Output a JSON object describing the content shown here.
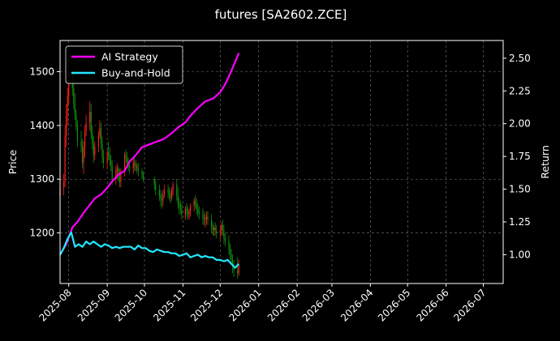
{
  "chart_data": {
    "type": "line",
    "title": "futures [SA2602.ZCE]",
    "xlabel": "",
    "ylabel": "Price",
    "y2label": "Return",
    "x_range": [
      "2025-07-25",
      "2026-07-17"
    ],
    "x_ticks": [
      "2025-08-01",
      "2025-09-01",
      "2025-10-01",
      "2025-11-01",
      "2025-12-01",
      "2026-01-01",
      "2026-02-01",
      "2026-03-01",
      "2026-04-01",
      "2026-05-01",
      "2026-06-01",
      "2026-07-01"
    ],
    "x_tick_labels": [
      "2025-08",
      "2025-09",
      "2025-10",
      "2025-11",
      "2025-12",
      "2026-01",
      "2026-02",
      "2026-03",
      "2026-04",
      "2026-05",
      "2026-06",
      "2026-07"
    ],
    "ylim_left": [
      1106,
      1558
    ],
    "y_ticks_left": [
      1200,
      1300,
      1400,
      1500
    ],
    "ylim_right": [
      0.78,
      2.635
    ],
    "y_ticks_right": [
      1.0,
      1.25,
      1.5,
      1.75,
      2.0,
      2.25,
      2.5
    ],
    "y_tick_labels_right": [
      "1.00",
      "1.25",
      "1.50",
      "1.75",
      "2.00",
      "2.25",
      "2.50"
    ],
    "grid": true,
    "legend_position": "top-left",
    "candles": {
      "up_color": "#ff2020",
      "down_color": "#109010",
      "dates": [
        "2025-07-25",
        "2025-07-28",
        "2025-07-29",
        "2025-07-30",
        "2025-07-31",
        "2025-08-01",
        "2025-08-04",
        "2025-08-05",
        "2025-08-06",
        "2025-08-07",
        "2025-08-08",
        "2025-08-11",
        "2025-08-12",
        "2025-08-13",
        "2025-08-14",
        "2025-08-15",
        "2025-08-18",
        "2025-08-19",
        "2025-08-20",
        "2025-08-21",
        "2025-08-22",
        "2025-08-25",
        "2025-08-26",
        "2025-08-27",
        "2025-08-28",
        "2025-08-29",
        "2025-09-01",
        "2025-09-02",
        "2025-09-03",
        "2025-09-04",
        "2025-09-05",
        "2025-09-08",
        "2025-09-09",
        "2025-09-10",
        "2025-09-11",
        "2025-09-12",
        "2025-09-15",
        "2025-09-16",
        "2025-09-17",
        "2025-09-18",
        "2025-09-19",
        "2025-09-22",
        "2025-09-23",
        "2025-09-24",
        "2025-09-25",
        "2025-09-26",
        "2025-09-29",
        "2025-09-30",
        "2025-10-09",
        "2025-10-10",
        "2025-10-13",
        "2025-10-14",
        "2025-10-15",
        "2025-10-16",
        "2025-10-17",
        "2025-10-20",
        "2025-10-21",
        "2025-10-22",
        "2025-10-23",
        "2025-10-24",
        "2025-10-27",
        "2025-10-28",
        "2025-10-29",
        "2025-10-30",
        "2025-10-31",
        "2025-11-03",
        "2025-11-04",
        "2025-11-05",
        "2025-11-06",
        "2025-11-07",
        "2025-11-10",
        "2025-11-11",
        "2025-11-12",
        "2025-11-13",
        "2025-11-14",
        "2025-11-17",
        "2025-11-18",
        "2025-11-19",
        "2025-11-20",
        "2025-11-21",
        "2025-11-24",
        "2025-11-25",
        "2025-11-26",
        "2025-11-27",
        "2025-11-28",
        "2025-12-01",
        "2025-12-02",
        "2025-12-03",
        "2025-12-04",
        "2025-12-05",
        "2025-12-08",
        "2025-12-09",
        "2025-12-10",
        "2025-12-11",
        "2025-12-12",
        "2025-12-15",
        "2025-12-16"
      ],
      "open": [
        1270,
        1285,
        1295,
        1380,
        1420,
        1455,
        1480,
        1470,
        1440,
        1420,
        1400,
        1370,
        1360,
        1330,
        1360,
        1390,
        1405,
        1425,
        1385,
        1365,
        1345,
        1360,
        1380,
        1395,
        1365,
        1340,
        1330,
        1350,
        1345,
        1335,
        1325,
        1300,
        1315,
        1320,
        1305,
        1295,
        1315,
        1345,
        1340,
        1330,
        1325,
        1320,
        1330,
        1325,
        1325,
        1320,
        1315,
        1310,
        1300,
        1290,
        1280,
        1270,
        1265,
        1260,
        1270,
        1280,
        1275,
        1270,
        1265,
        1280,
        1290,
        1270,
        1255,
        1250,
        1245,
        1235,
        1245,
        1240,
        1235,
        1240,
        1250,
        1260,
        1255,
        1245,
        1240,
        1235,
        1230,
        1225,
        1225,
        1230,
        1225,
        1210,
        1205,
        1210,
        1205,
        1200,
        1205,
        1215,
        1205,
        1190,
        1185,
        1170,
        1160,
        1150,
        1140,
        1130,
        1125
      ],
      "high": [
        1300,
        1310,
        1400,
        1440,
        1470,
        1500,
        1500,
        1490,
        1460,
        1430,
        1410,
        1390,
        1375,
        1370,
        1400,
        1420,
        1445,
        1440,
        1400,
        1380,
        1370,
        1390,
        1410,
        1405,
        1380,
        1355,
        1355,
        1370,
        1360,
        1345,
        1335,
        1325,
        1330,
        1325,
        1320,
        1320,
        1350,
        1355,
        1350,
        1340,
        1335,
        1340,
        1340,
        1335,
        1330,
        1330,
        1320,
        1315,
        1305,
        1300,
        1290,
        1280,
        1275,
        1280,
        1290,
        1290,
        1285,
        1280,
        1285,
        1295,
        1300,
        1285,
        1265,
        1260,
        1255,
        1250,
        1255,
        1250,
        1245,
        1255,
        1265,
        1270,
        1265,
        1255,
        1250,
        1245,
        1240,
        1235,
        1240,
        1240,
        1235,
        1220,
        1215,
        1220,
        1215,
        1210,
        1220,
        1225,
        1215,
        1200,
        1195,
        1180,
        1170,
        1160,
        1150,
        1155,
        1150
      ],
      "low": [
        1255,
        1270,
        1285,
        1360,
        1400,
        1440,
        1455,
        1430,
        1410,
        1390,
        1360,
        1350,
        1320,
        1310,
        1340,
        1380,
        1390,
        1375,
        1355,
        1330,
        1335,
        1350,
        1375,
        1355,
        1330,
        1320,
        1320,
        1335,
        1325,
        1315,
        1290,
        1290,
        1300,
        1295,
        1285,
        1285,
        1305,
        1330,
        1320,
        1315,
        1310,
        1310,
        1315,
        1315,
        1310,
        1305,
        1300,
        1295,
        1280,
        1270,
        1260,
        1250,
        1245,
        1250,
        1265,
        1265,
        1260,
        1255,
        1260,
        1270,
        1260,
        1245,
        1235,
        1235,
        1225,
        1225,
        1230,
        1225,
        1225,
        1230,
        1240,
        1245,
        1235,
        1230,
        1225,
        1215,
        1215,
        1210,
        1215,
        1215,
        1200,
        1195,
        1195,
        1195,
        1190,
        1185,
        1195,
        1195,
        1180,
        1175,
        1160,
        1150,
        1140,
        1125,
        1118,
        1115,
        1120
      ],
      "close": [
        1285,
        1295,
        1380,
        1420,
        1455,
        1480,
        1470,
        1440,
        1420,
        1400,
        1370,
        1360,
        1330,
        1360,
        1390,
        1405,
        1425,
        1385,
        1365,
        1345,
        1360,
        1380,
        1395,
        1365,
        1340,
        1330,
        1350,
        1345,
        1335,
        1325,
        1300,
        1315,
        1320,
        1305,
        1295,
        1315,
        1345,
        1340,
        1330,
        1325,
        1320,
        1330,
        1325,
        1325,
        1320,
        1315,
        1310,
        1300,
        1290,
        1280,
        1270,
        1265,
        1260,
        1270,
        1280,
        1275,
        1270,
        1265,
        1280,
        1290,
        1270,
        1255,
        1250,
        1245,
        1235,
        1245,
        1240,
        1235,
        1240,
        1250,
        1260,
        1255,
        1245,
        1240,
        1235,
        1230,
        1225,
        1225,
        1230,
        1225,
        1210,
        1205,
        1210,
        1205,
        1200,
        1205,
        1215,
        1205,
        1190,
        1185,
        1170,
        1160,
        1150,
        1140,
        1130,
        1125,
        1140
      ]
    },
    "series": [
      {
        "name": "AI Strategy",
        "color": "#ff00ff",
        "axis": "right",
        "x": [
          "2025-07-25",
          "2025-07-30",
          "2025-08-04",
          "2025-08-08",
          "2025-08-13",
          "2025-08-18",
          "2025-08-22",
          "2025-08-27",
          "2025-09-01",
          "2025-09-05",
          "2025-09-10",
          "2025-09-15",
          "2025-09-19",
          "2025-09-24",
          "2025-09-29",
          "2025-10-10",
          "2025-10-16",
          "2025-10-22",
          "2025-10-28",
          "2025-11-03",
          "2025-11-07",
          "2025-11-13",
          "2025-11-19",
          "2025-11-25",
          "2025-12-01",
          "2025-12-05",
          "2025-12-09",
          "2025-12-13",
          "2025-12-16"
        ],
        "values": [
          1.0,
          1.08,
          1.21,
          1.25,
          1.32,
          1.38,
          1.43,
          1.46,
          1.51,
          1.56,
          1.61,
          1.64,
          1.71,
          1.76,
          1.82,
          1.86,
          1.88,
          1.92,
          1.97,
          2.01,
          2.06,
          2.12,
          2.17,
          2.19,
          2.24,
          2.3,
          2.38,
          2.47,
          2.54
        ]
      },
      {
        "name": "Buy-and-Hold",
        "color": "#20e8ff",
        "axis": "right",
        "x": [
          "2025-07-25",
          "2025-07-28",
          "2025-07-31",
          "2025-08-03",
          "2025-08-06",
          "2025-08-09",
          "2025-08-12",
          "2025-08-15",
          "2025-08-18",
          "2025-08-21",
          "2025-08-24",
          "2025-08-27",
          "2025-08-30",
          "2025-09-02",
          "2025-09-05",
          "2025-09-08",
          "2025-09-11",
          "2025-09-14",
          "2025-09-17",
          "2025-09-20",
          "2025-09-23",
          "2025-09-26",
          "2025-09-29",
          "2025-10-02",
          "2025-10-05",
          "2025-10-08",
          "2025-10-11",
          "2025-10-14",
          "2025-10-17",
          "2025-10-20",
          "2025-10-23",
          "2025-10-26",
          "2025-10-29",
          "2025-11-01",
          "2025-11-04",
          "2025-11-07",
          "2025-11-10",
          "2025-11-13",
          "2025-11-16",
          "2025-11-19",
          "2025-11-22",
          "2025-11-25",
          "2025-11-28",
          "2025-12-01",
          "2025-12-04",
          "2025-12-07",
          "2025-12-10",
          "2025-12-13",
          "2025-12-16"
        ],
        "values": [
          1.0,
          1.05,
          1.12,
          1.17,
          1.06,
          1.08,
          1.06,
          1.1,
          1.08,
          1.1,
          1.08,
          1.06,
          1.08,
          1.07,
          1.05,
          1.06,
          1.05,
          1.06,
          1.06,
          1.06,
          1.04,
          1.07,
          1.05,
          1.05,
          1.03,
          1.02,
          1.04,
          1.03,
          1.02,
          1.02,
          1.01,
          1.01,
          0.99,
          1.0,
          1.01,
          0.98,
          0.99,
          1.0,
          0.98,
          0.99,
          0.98,
          0.98,
          0.96,
          0.96,
          0.95,
          0.96,
          0.93,
          0.9,
          0.93
        ]
      }
    ]
  }
}
